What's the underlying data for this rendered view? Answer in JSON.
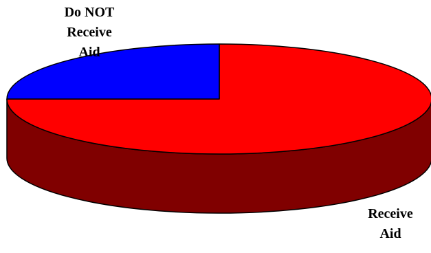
{
  "chart_data": {
    "type": "pie",
    "style": "3d",
    "slices": [
      {
        "label": "Do NOT Receive Aid",
        "label_lines": [
          "Do NOT",
          "Receive",
          "Aid"
        ],
        "value": 25,
        "color": "#0000ff"
      },
      {
        "label": "Receive Aid",
        "label_lines": [
          "Receive",
          "Aid"
        ],
        "value": 75,
        "color": "#ff0000",
        "side_color": "#800000"
      }
    ],
    "title": "",
    "legend": false
  }
}
